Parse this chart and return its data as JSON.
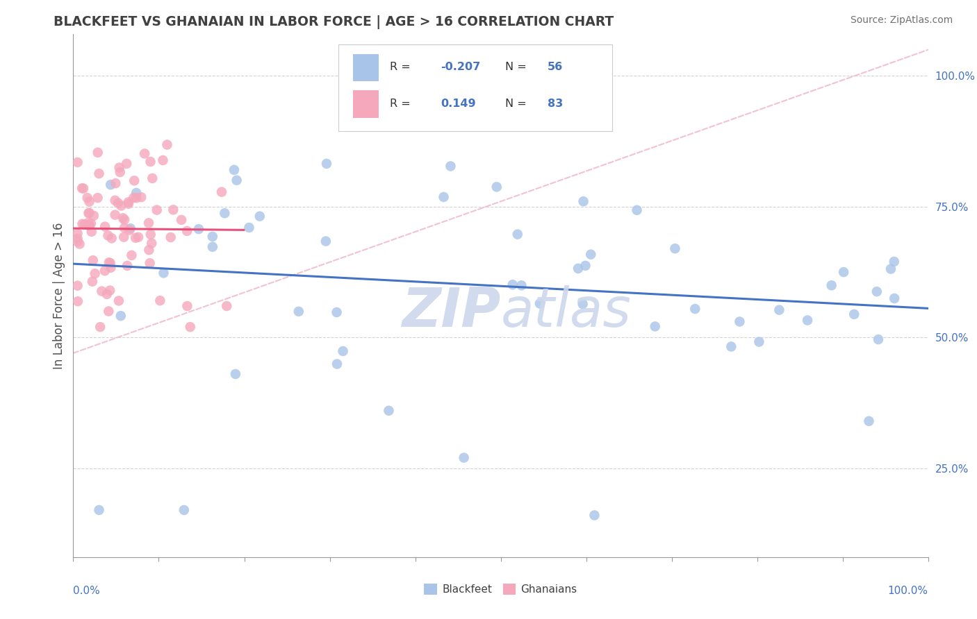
{
  "title": "BLACKFEET VS GHANAIAN IN LABOR FORCE | AGE > 16 CORRELATION CHART",
  "source_text": "Source: ZipAtlas.com",
  "ylabel": "In Labor Force | Age > 16",
  "xlim": [
    0.0,
    1.0
  ],
  "ylim": [
    0.08,
    1.08
  ],
  "x_ticks": [
    0.0,
    0.1,
    0.2,
    0.3,
    0.4,
    0.5,
    0.6,
    0.7,
    0.8,
    0.9,
    1.0
  ],
  "y_ticks_right": [
    0.25,
    0.5,
    0.75,
    1.0
  ],
  "y_tick_labels_right": [
    "25.0%",
    "50.0%",
    "75.0%",
    "100.0%"
  ],
  "blackfeet_R": -0.207,
  "blackfeet_N": 56,
  "ghanaian_R": 0.149,
  "ghanaian_N": 83,
  "blackfeet_color": "#a8c4e8",
  "ghanaian_color": "#f5a8bc",
  "blackfeet_line_color": "#4472c4",
  "ghanaian_line_color": "#e8507a",
  "dashed_line_color": "#f0b8c8",
  "background_color": "#ffffff",
  "grid_color": "#c8c8c8",
  "title_color": "#404040",
  "watermark_color": "#ccd8ec",
  "legend_color": "#4472c4",
  "label_color": "#4472c4"
}
